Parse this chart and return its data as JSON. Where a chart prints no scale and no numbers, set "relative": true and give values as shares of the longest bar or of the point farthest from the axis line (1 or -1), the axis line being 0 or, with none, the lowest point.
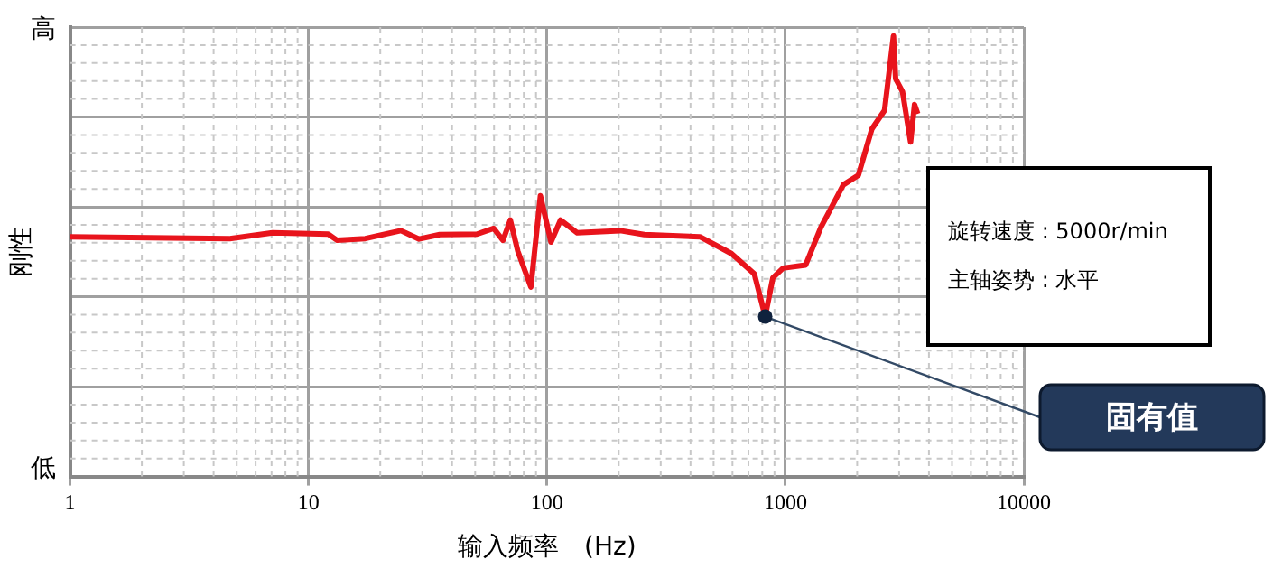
{
  "chart_data": {
    "type": "line",
    "relative": true,
    "ylabel": "刚性",
    "xlabel": "输入频率　(Hz)",
    "log": "x",
    "xlim": [
      1,
      10000
    ],
    "xticks": [
      1,
      10,
      100,
      1000,
      10000
    ],
    "grid": true,
    "legend": false,
    "marker": "none",
    "line_style": "solid",
    "annotations": [
      "高",
      "低",
      "旋转速度 : 5000r/min",
      "主轴姿势 : 水平",
      "固有值"
    ],
    "series": [
      {
        "color": "#e8141c",
        "x": [
          1,
          4.68,
          7.07,
          12.1,
          13.2,
          17.3,
          24.4,
          29.1,
          35.5,
          50.9,
          59.8,
          65.4,
          70.2,
          75.5,
          85.6,
          93.9,
          104,
          114,
          134,
          203,
          256,
          438,
          594,
          741,
          823,
          886,
          978,
          1216,
          1408,
          1750,
          2025,
          2306,
          2605,
          2840,
          2900,
          3100,
          3350,
          3480,
          3590
        ],
        "values": [
          0.544,
          0.54,
          0.553,
          0.55,
          0.536,
          0.54,
          0.558,
          0.539,
          0.549,
          0.55,
          0.563,
          0.536,
          0.582,
          0.511,
          0.43,
          0.637,
          0.532,
          0.582,
          0.553,
          0.558,
          0.549,
          0.544,
          0.506,
          0.46,
          0.363,
          0.451,
          0.473,
          0.48,
          0.565,
          0.662,
          0.684,
          0.789,
          0.831,
          1.0,
          0.903,
          0.873,
          0.759,
          0.844,
          0.823
        ]
      }
    ]
  }
}
